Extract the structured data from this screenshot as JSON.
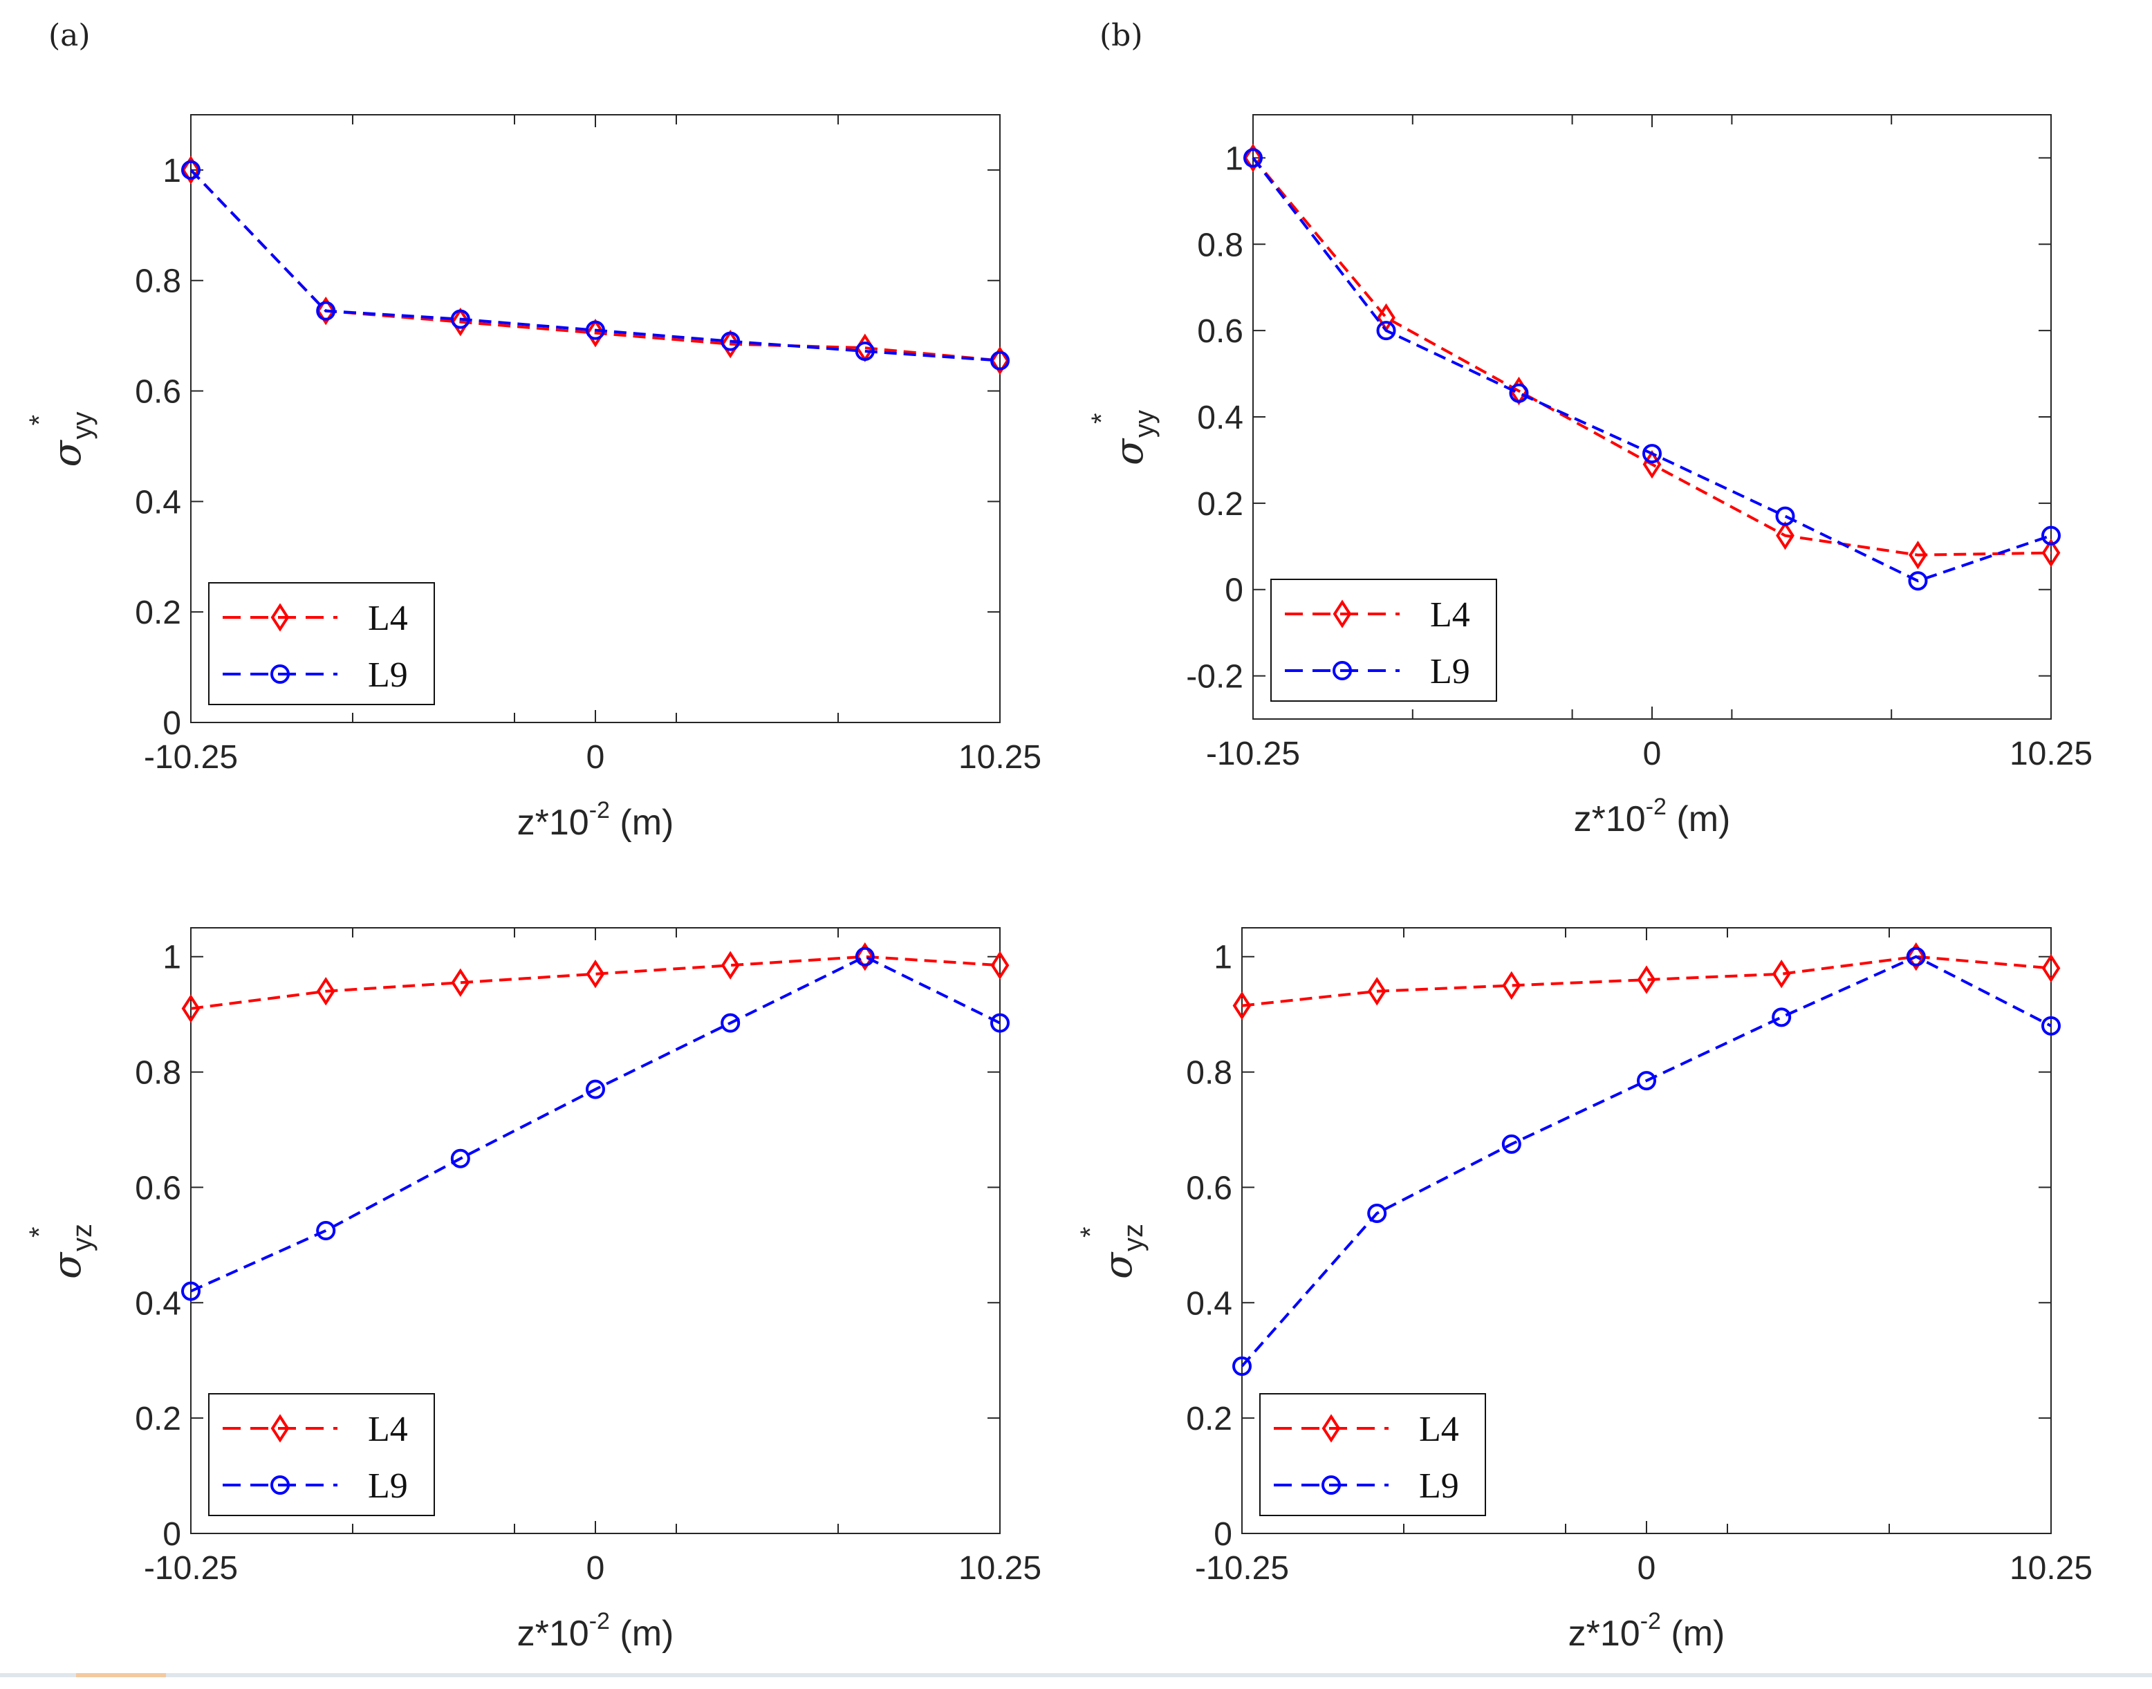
{
  "colors": {
    "L4": "#ff0000",
    "L9": "#0000ff",
    "axis": "#262626"
  },
  "panel_labels": {
    "a": "(a)",
    "b": "(b)"
  },
  "x_axis": {
    "label_prefix": "z*10",
    "label_sup": "-2",
    "label_suffix": " (m)"
  },
  "y_labels": {
    "syy": {
      "sub": "yy",
      "sup": "*"
    },
    "syz": {
      "sub": "yz",
      "sup": "*"
    }
  },
  "chart_data": [
    {
      "id": "a-top",
      "type": "line",
      "xlim": [
        -10.25,
        10.25
      ],
      "ylim": [
        0,
        1.1
      ],
      "xticks": [
        -10.25,
        0,
        10.25
      ],
      "xtick_labels": [
        "-10.25",
        "0",
        "10.25"
      ],
      "yticks": [
        0,
        0.2,
        0.4,
        0.6,
        0.8,
        1
      ],
      "ytick_labels": [
        "0",
        "0.2",
        "0.4",
        "0.6",
        "0.8",
        "1"
      ],
      "xlabel": "z*10^-2 (m)",
      "ylabel": "σ_yy*",
      "legend_position": "bottom-left",
      "x": [
        -10.25,
        -6.83,
        -3.42,
        0,
        3.42,
        6.83,
        10.25
      ],
      "series": [
        {
          "name": "L4",
          "marker": "diamond",
          "values": [
            1.0,
            0.745,
            0.725,
            0.705,
            0.685,
            0.678,
            0.655
          ]
        },
        {
          "name": "L9",
          "marker": "circle",
          "values": [
            1.0,
            0.745,
            0.73,
            0.71,
            0.69,
            0.672,
            0.655
          ]
        }
      ]
    },
    {
      "id": "b-top",
      "type": "line",
      "xlim": [
        -10.25,
        10.25
      ],
      "ylim": [
        -0.3,
        1.1
      ],
      "xticks": [
        -10.25,
        0,
        10.25
      ],
      "xtick_labels": [
        "-10.25",
        "0",
        "10.25"
      ],
      "yticks": [
        -0.2,
        0,
        0.2,
        0.4,
        0.6,
        0.8,
        1
      ],
      "ytick_labels": [
        "-0.2",
        "0",
        "0.2",
        "0.4",
        "0.6",
        "0.8",
        "1"
      ],
      "xlabel": "z*10^-2 (m)",
      "ylabel": "σ_yy*",
      "legend_position": "bottom-left",
      "x": [
        -10.25,
        -6.83,
        -3.42,
        0,
        3.42,
        6.83,
        10.25
      ],
      "series": [
        {
          "name": "L4",
          "marker": "diamond",
          "values": [
            1.0,
            0.63,
            0.46,
            0.29,
            0.125,
            0.08,
            0.085
          ]
        },
        {
          "name": "L9",
          "marker": "circle",
          "values": [
            1.0,
            0.6,
            0.455,
            0.315,
            0.17,
            0.02,
            0.125
          ]
        }
      ]
    },
    {
      "id": "a-bottom",
      "type": "line",
      "xlim": [
        -10.25,
        10.25
      ],
      "ylim": [
        0,
        1.05
      ],
      "xticks": [
        -10.25,
        0,
        10.25
      ],
      "xtick_labels": [
        "-10.25",
        "0",
        "10.25"
      ],
      "yticks": [
        0,
        0.2,
        0.4,
        0.6,
        0.8,
        1
      ],
      "ytick_labels": [
        "0",
        "0.2",
        "0.4",
        "0.6",
        "0.8",
        "1"
      ],
      "xlabel": "z*10^-2 (m)",
      "ylabel": "σ_yz*",
      "legend_position": "bottom-left",
      "x": [
        -10.25,
        -6.83,
        -3.42,
        0,
        3.42,
        6.83,
        10.25
      ],
      "series": [
        {
          "name": "L4",
          "marker": "diamond",
          "values": [
            0.91,
            0.94,
            0.955,
            0.97,
            0.985,
            1.0,
            0.985
          ]
        },
        {
          "name": "L9",
          "marker": "circle",
          "values": [
            0.42,
            0.525,
            0.65,
            0.77,
            0.885,
            1.0,
            0.885
          ]
        }
      ]
    },
    {
      "id": "b-bottom",
      "type": "line",
      "xlim": [
        -10.25,
        10.25
      ],
      "ylim": [
        0,
        1.05
      ],
      "xticks": [
        -10.25,
        0,
        10.25
      ],
      "xtick_labels": [
        "-10.25",
        "0",
        "10.25"
      ],
      "yticks": [
        0,
        0.2,
        0.4,
        0.6,
        0.8,
        1
      ],
      "ytick_labels": [
        "0",
        "0.2",
        "0.4",
        "0.6",
        "0.8",
        "1"
      ],
      "xlabel": "z*10^-2 (m)",
      "ylabel": "σ_yz*",
      "legend_position": "bottom-left",
      "x": [
        -10.25,
        -6.83,
        -3.42,
        0,
        3.42,
        6.83,
        10.25
      ],
      "series": [
        {
          "name": "L4",
          "marker": "diamond",
          "values": [
            0.915,
            0.94,
            0.95,
            0.96,
            0.97,
            1.0,
            0.98
          ]
        },
        {
          "name": "L9",
          "marker": "circle",
          "values": [
            0.29,
            0.555,
            0.675,
            0.785,
            0.895,
            1.0,
            0.88
          ]
        }
      ]
    }
  ]
}
